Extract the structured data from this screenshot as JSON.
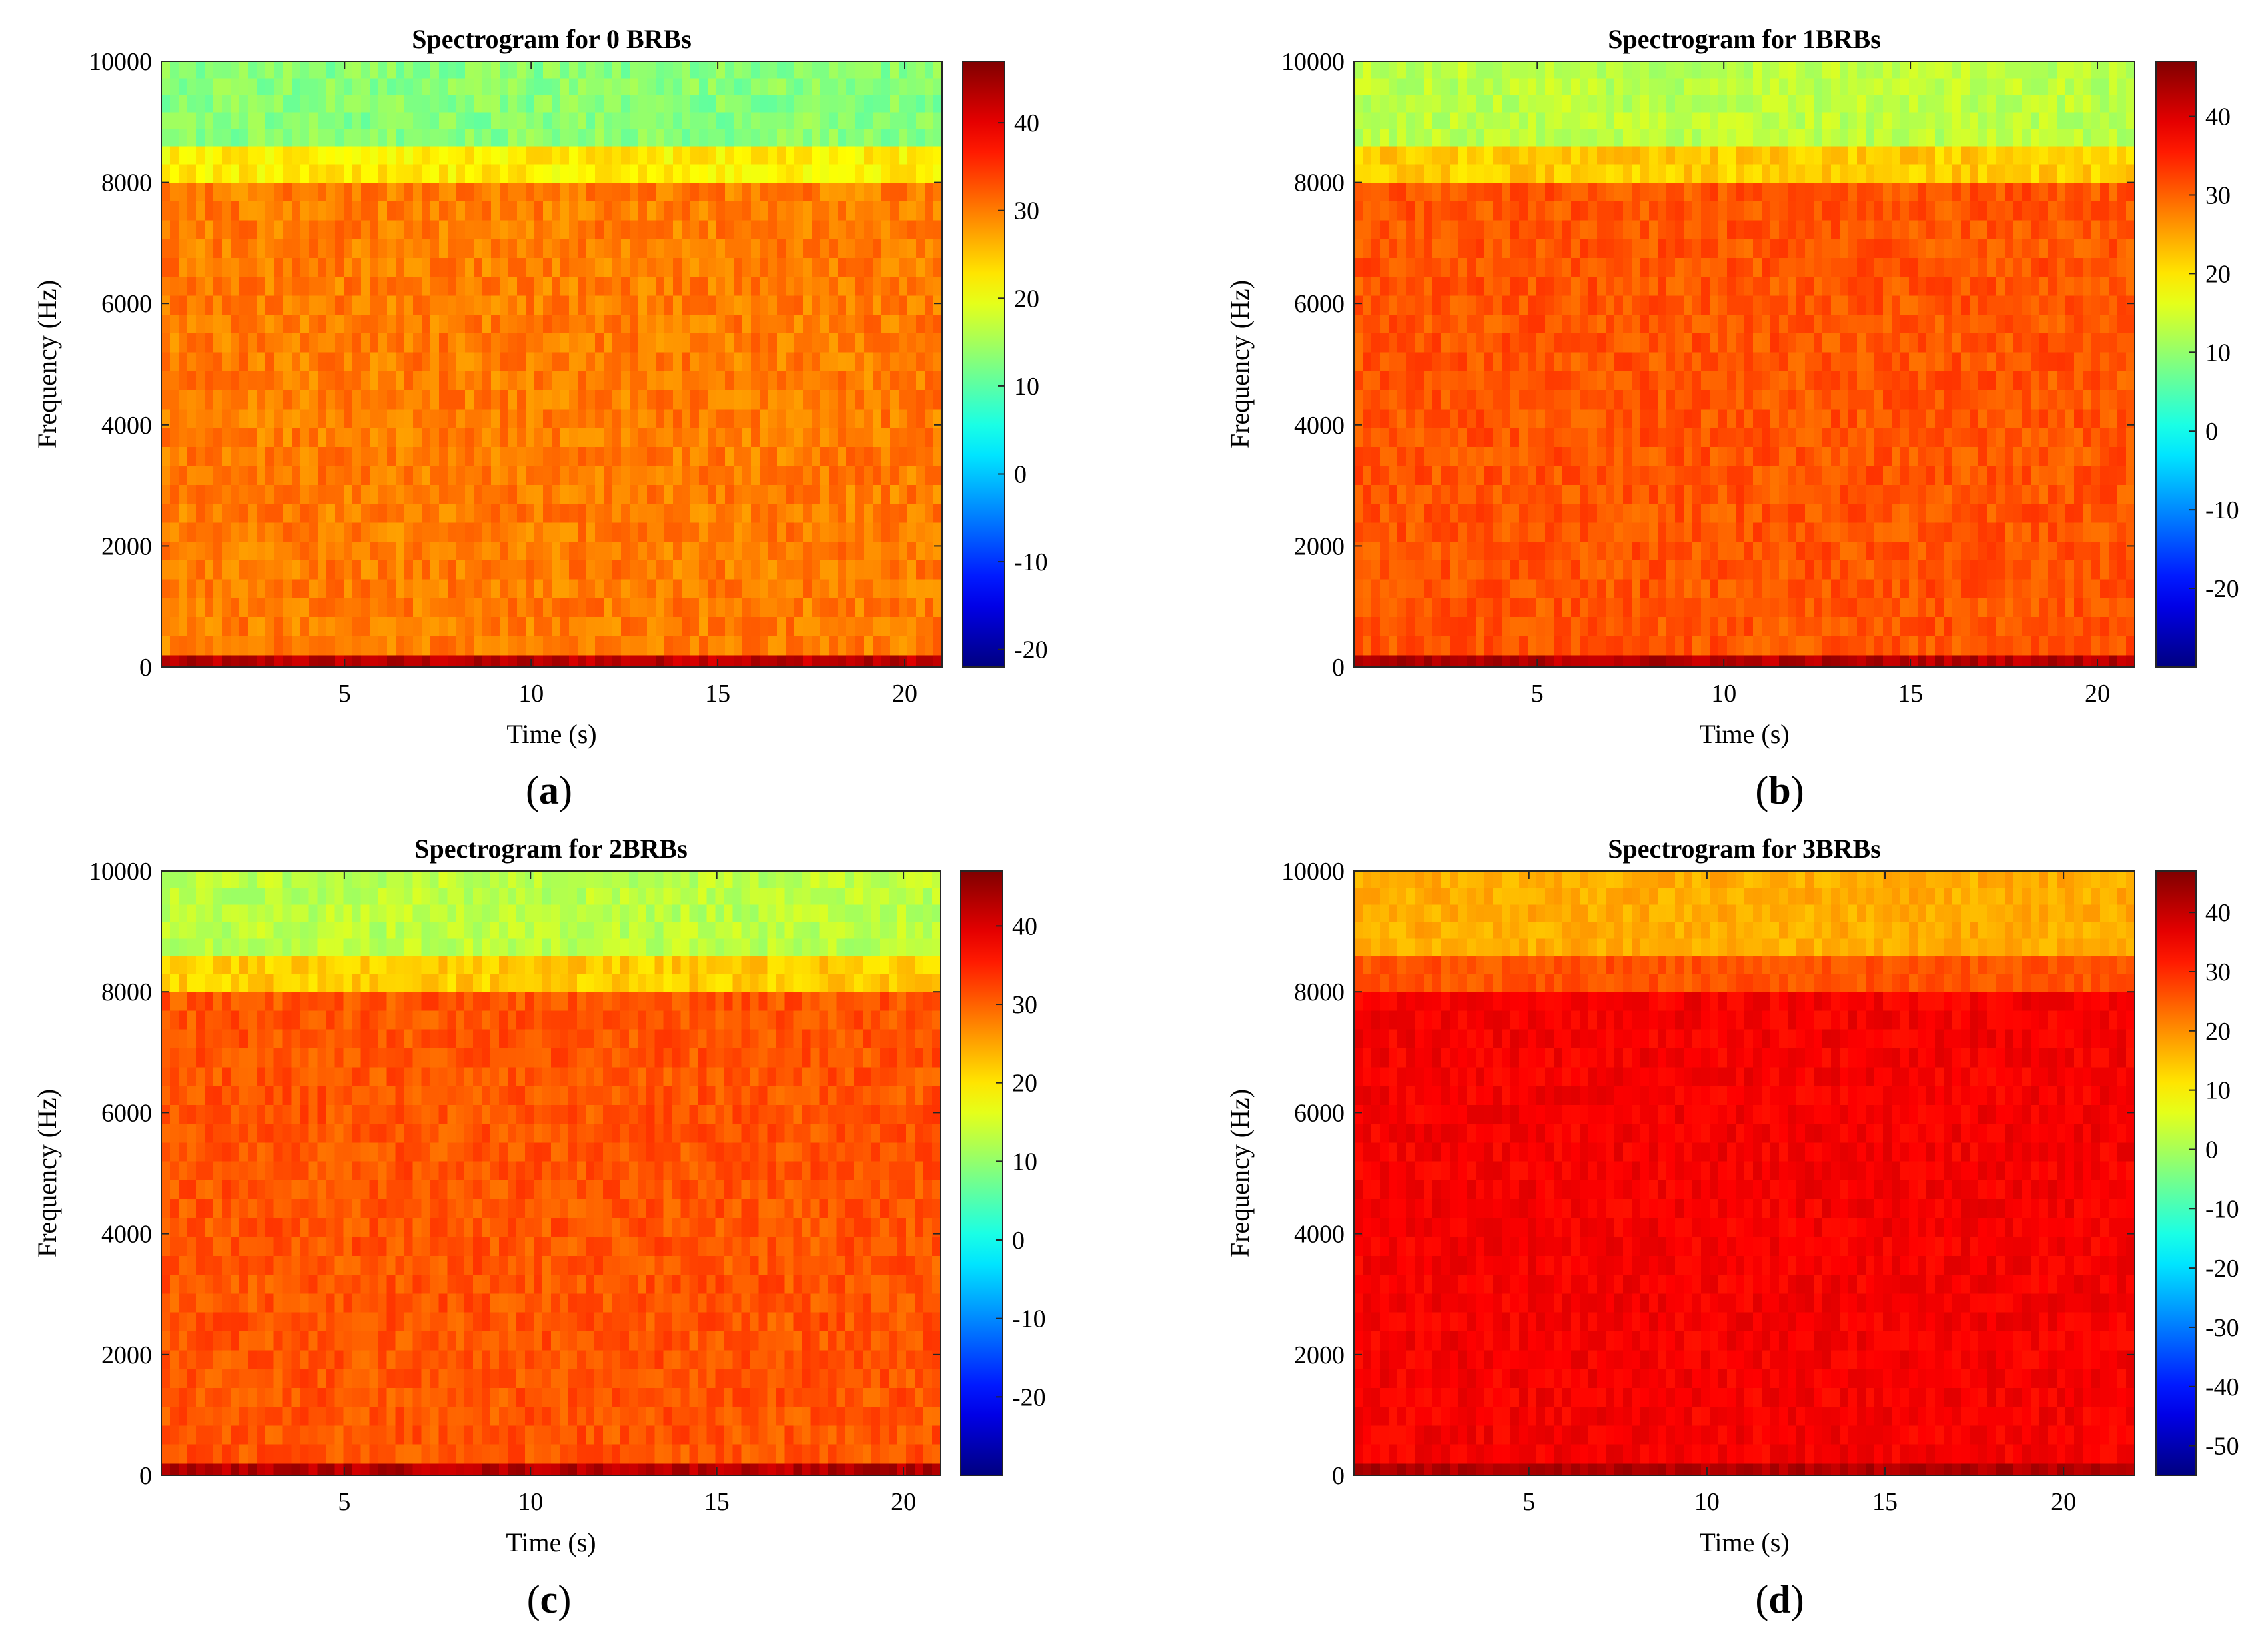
{
  "chart_data": [
    {
      "type": "heatmap",
      "panel_label": "a",
      "title": "Spectrogram for 0 BRBs",
      "xlabel": "Time (s)",
      "ylabel": "Frequency (Hz)",
      "xlim": [
        0.1,
        21
      ],
      "ylim": [
        0,
        10000
      ],
      "xticks": [
        5,
        10,
        15,
        20
      ],
      "yticks": [
        0,
        2000,
        4000,
        6000,
        8000,
        10000
      ],
      "colorbar": {
        "colormap": "jet",
        "range": [
          -22,
          47
        ],
        "ticks": [
          -20,
          -10,
          0,
          10,
          20,
          30,
          40
        ]
      },
      "bands": [
        {
          "freq": [
            0,
            200
          ],
          "level": 43
        },
        {
          "freq": [
            200,
            8000
          ],
          "level": 30
        },
        {
          "freq": [
            8000,
            8600
          ],
          "level": 22
        },
        {
          "freq": [
            8600,
            10000
          ],
          "level": 13
        }
      ]
    },
    {
      "type": "heatmap",
      "panel_label": "b",
      "title": "Spectrogram for 1BRBs",
      "xlabel": "Time (s)",
      "ylabel": "Frequency (Hz)",
      "xlim": [
        0.1,
        21
      ],
      "ylim": [
        0,
        10000
      ],
      "xticks": [
        5,
        10,
        15,
        20
      ],
      "yticks": [
        0,
        2000,
        4000,
        6000,
        8000,
        10000
      ],
      "colorbar": {
        "colormap": "jet",
        "range": [
          -30,
          47
        ],
        "ticks": [
          -20,
          -10,
          0,
          10,
          20,
          30,
          40
        ]
      },
      "bands": [
        {
          "freq": [
            0,
            200
          ],
          "level": 43
        },
        {
          "freq": [
            200,
            8000
          ],
          "level": 31
        },
        {
          "freq": [
            8000,
            8600
          ],
          "level": 22
        },
        {
          "freq": [
            8600,
            10000
          ],
          "level": 13
        }
      ]
    },
    {
      "type": "heatmap",
      "panel_label": "c",
      "title": "Spectrogram for 2BRBs",
      "xlabel": "Time (s)",
      "ylabel": "Frequency (Hz)",
      "xlim": [
        0.1,
        21
      ],
      "ylim": [
        0,
        10000
      ],
      "xticks": [
        5,
        10,
        15,
        20
      ],
      "yticks": [
        0,
        2000,
        4000,
        6000,
        8000,
        10000
      ],
      "colorbar": {
        "colormap": "jet",
        "range": [
          -30,
          47
        ],
        "ticks": [
          -20,
          -10,
          0,
          10,
          20,
          30,
          40
        ]
      },
      "bands": [
        {
          "freq": [
            0,
            200
          ],
          "level": 43
        },
        {
          "freq": [
            200,
            8000
          ],
          "level": 31
        },
        {
          "freq": [
            8000,
            8600
          ],
          "level": 22
        },
        {
          "freq": [
            8600,
            10000
          ],
          "level": 13
        }
      ]
    },
    {
      "type": "heatmap",
      "panel_label": "d",
      "title": "Spectrogram for 3BRBs",
      "xlabel": "Time (s)",
      "ylabel": "Frequency (Hz)",
      "xlim": [
        0.1,
        22
      ],
      "ylim": [
        0,
        10000
      ],
      "xticks": [
        5,
        10,
        15,
        20
      ],
      "yticks": [
        0,
        2000,
        4000,
        6000,
        8000,
        10000
      ],
      "colorbar": {
        "colormap": "jet",
        "range": [
          -55,
          47
        ],
        "ticks": [
          -50,
          -40,
          -30,
          -20,
          -10,
          0,
          10,
          20,
          30,
          40
        ]
      },
      "bands": [
        {
          "freq": [
            0,
            200
          ],
          "level": 42
        },
        {
          "freq": [
            200,
            8000
          ],
          "level": 35
        },
        {
          "freq": [
            8000,
            8600
          ],
          "level": 26
        },
        {
          "freq": [
            8600,
            10000
          ],
          "level": 17
        }
      ]
    }
  ]
}
